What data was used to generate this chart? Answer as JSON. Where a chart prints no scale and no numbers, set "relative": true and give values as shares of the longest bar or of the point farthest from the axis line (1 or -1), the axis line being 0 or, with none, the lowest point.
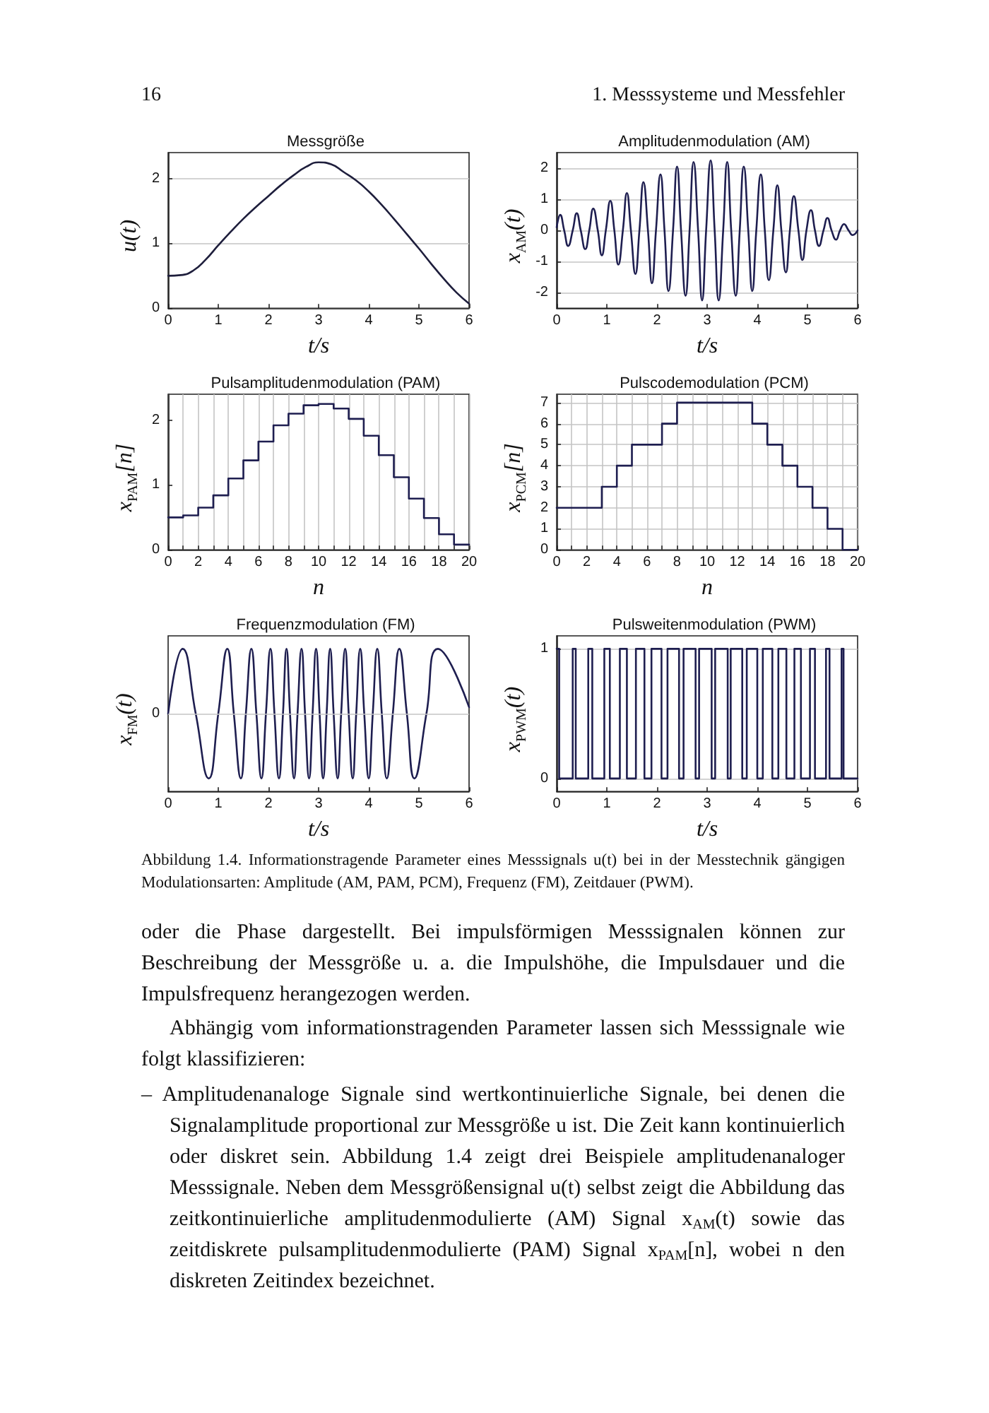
{
  "chart_data": [
    {
      "type": "line",
      "title": "Messgröße",
      "xlabel": "t/s",
      "ylabel": "u(t)",
      "x": [
        0,
        0.25,
        0.5,
        0.75,
        1,
        1.25,
        1.5,
        1.75,
        2,
        2.25,
        2.5,
        2.75,
        3,
        3.25,
        3.5,
        3.75,
        4,
        4.25,
        4.5,
        4.75,
        5,
        5.25,
        5.5,
        5.75,
        6
      ],
      "series": [
        {
          "color": "#1e1e3c",
          "values": [
            0.5,
            0.51,
            0.58,
            0.75,
            0.97,
            1.18,
            1.38,
            1.56,
            1.73,
            1.9,
            2.05,
            2.18,
            2.25,
            2.22,
            2.1,
            1.97,
            1.8,
            1.6,
            1.38,
            1.15,
            0.92,
            0.68,
            0.45,
            0.24,
            0.07
          ]
        }
      ],
      "xlim": [
        0,
        6
      ],
      "xticks": [
        0,
        1,
        2,
        3,
        4,
        5,
        6
      ],
      "ylim": [
        0,
        2.4
      ],
      "yticks": [
        0,
        1,
        2
      ],
      "grid": "y",
      "annotations": [
        "16",
        "1. Messsysteme und Messfehler"
      ]
    },
    {
      "type": "line",
      "title": "Amplitudenmodulation (AM)",
      "xlabel": "t/s",
      "ylabel": "x$_{AM}$(t)",
      "x": [
        0,
        0.07,
        0.15,
        0.23,
        0.32,
        0.4,
        0.48,
        0.57,
        0.65,
        0.73,
        0.82,
        0.9,
        0.98,
        1.07,
        1.15,
        1.23,
        1.32,
        1.4,
        1.48,
        1.57,
        1.65,
        1.73,
        1.82,
        1.9,
        1.98,
        2.07,
        2.15,
        2.23,
        2.32,
        2.4,
        2.48,
        2.57,
        2.65,
        2.73,
        2.82,
        2.9,
        2.98,
        3.07,
        3.15,
        3.23,
        3.32,
        3.4,
        3.48,
        3.57,
        3.65,
        3.73,
        3.82,
        3.9,
        3.98,
        4.07,
        4.15,
        4.23,
        4.32,
        4.4,
        4.48,
        4.57,
        4.65,
        4.73,
        4.82,
        4.9,
        4.98,
        5.07,
        5.15,
        5.23,
        5.32,
        5.4,
        5.48,
        5.57,
        5.65,
        5.73,
        5.82,
        5.9,
        6
      ],
      "series": [
        {
          "color": "#1e1e50",
          "values": [
            0.1,
            0.5,
            0,
            -0.5,
            0,
            0.55,
            0,
            -0.6,
            0,
            0.7,
            0,
            -0.8,
            0,
            0.95,
            0,
            -1.1,
            0,
            1.2,
            0,
            -1.4,
            0,
            1.55,
            0,
            -1.7,
            0,
            1.8,
            0,
            -1.95,
            0,
            2.05,
            0,
            -2.1,
            0,
            2.2,
            0,
            -2.25,
            0,
            2.25,
            0,
            -2.25,
            0,
            2.2,
            0,
            -2.1,
            0,
            2.05,
            0,
            -1.95,
            0,
            1.8,
            0,
            -1.6,
            0,
            1.45,
            0,
            -1.35,
            0,
            1.1,
            0,
            -0.95,
            0,
            0.65,
            0,
            -0.5,
            0,
            0.4,
            0,
            -0.3,
            0,
            0.2,
            0,
            -0.15,
            0
          ]
        }
      ],
      "xlim": [
        0,
        6
      ],
      "xticks": [
        0,
        1,
        2,
        3,
        4,
        5,
        6
      ],
      "ylim": [
        -2.5,
        2.5
      ],
      "yticks": [
        -2,
        -1,
        0,
        1,
        2
      ],
      "grid": "y"
    },
    {
      "type": "step",
      "title": "Pulsamplitudenmodulation (PAM)",
      "xlabel": "n",
      "ylabel": "x$_{PAM}$[n]",
      "x": [
        0,
        1,
        2,
        3,
        4,
        5,
        6,
        7,
        8,
        9,
        10,
        11,
        12,
        13,
        14,
        15,
        16,
        17,
        18,
        19,
        20
      ],
      "series": [
        {
          "color": "#1e1e50",
          "values": [
            0.5,
            0.53,
            0.65,
            0.84,
            1.1,
            1.38,
            1.67,
            1.92,
            2.1,
            2.23,
            2.25,
            2.18,
            2.02,
            1.76,
            1.46,
            1.12,
            0.79,
            0.49,
            0.24,
            0.08,
            0.08
          ]
        }
      ],
      "xlim": [
        0,
        20
      ],
      "xticks": [
        0,
        {
          "value": 1,
          "label": null
        },
        2,
        {
          "value": 3,
          "label": null
        },
        4,
        {
          "value": 5,
          "label": null
        },
        6,
        {
          "value": 7,
          "label": null
        },
        8,
        {
          "value": 9,
          "label": null
        },
        10,
        {
          "value": 11,
          "label": null
        },
        12,
        {
          "value": 13,
          "label": null
        },
        14,
        {
          "value": 15,
          "label": null
        },
        16,
        {
          "value": 17,
          "label": null
        },
        18,
        {
          "value": 19,
          "label": null
        },
        20
      ],
      "ylim": [
        0,
        2.4
      ],
      "yticks": [
        0,
        1,
        2
      ],
      "grid": "x"
    },
    {
      "type": "step",
      "title": "Pulscodemodulation (PCM)",
      "xlabel": "n",
      "ylabel": "x$_{PCM}$[n]",
      "x": [
        0,
        1,
        2,
        3,
        4,
        5,
        6,
        7,
        8,
        9,
        10,
        11,
        12,
        13,
        14,
        15,
        16,
        17,
        18,
        19,
        20
      ],
      "series": [
        {
          "color": "#1e1e50",
          "values": [
            2,
            2,
            2,
            3,
            4,
            5,
            5,
            6,
            7,
            7,
            7,
            7,
            7,
            6,
            5,
            4,
            3,
            2,
            1,
            0,
            0
          ]
        }
      ],
      "xlim": [
        0,
        20
      ],
      "xticks": [
        0,
        {
          "value": 1,
          "label": null
        },
        2,
        {
          "value": 3,
          "label": null
        },
        4,
        {
          "value": 5,
          "label": null
        },
        6,
        {
          "value": 7,
          "label": null
        },
        8,
        {
          "value": 9,
          "label": null
        },
        10,
        {
          "value": 11,
          "label": null
        },
        12,
        {
          "value": 13,
          "label": null
        },
        14,
        {
          "value": 15,
          "label": null
        },
        16,
        {
          "value": 17,
          "label": null
        },
        18,
        {
          "value": 19,
          "label": null
        },
        20
      ],
      "ylim": [
        0,
        7.4
      ],
      "yticks": [
        0,
        1,
        2,
        3,
        4,
        5,
        6,
        7
      ],
      "grid": true
    },
    {
      "type": "line",
      "title": "Frequenzmodulation (FM)",
      "xlabel": "t/s",
      "ylabel": "x$_{FM}$(t)",
      "relative": true,
      "x": [
        0,
        0.29,
        0.55,
        0.81,
        1.0,
        1.18,
        1.31,
        1.45,
        1.55,
        1.66,
        1.76,
        1.86,
        1.95,
        2.04,
        2.12,
        2.21,
        2.29,
        2.36,
        2.43,
        2.51,
        2.58,
        2.66,
        2.73,
        2.81,
        2.88,
        2.95,
        3.02,
        3.09,
        3.16,
        3.23,
        3.3,
        3.38,
        3.45,
        3.53,
        3.6,
        3.68,
        3.75,
        3.83,
        3.91,
        4.0,
        4.08,
        4.17,
        4.26,
        4.36,
        4.48,
        4.61,
        4.76,
        4.91,
        5.15,
        5.38,
        6
      ],
      "series": [
        {
          "color": "#1e1e50",
          "values": [
            0,
            1,
            0,
            -1,
            0,
            1,
            0,
            -1,
            0,
            1,
            0,
            -1,
            0,
            1,
            0,
            -1,
            0,
            1,
            0,
            -1,
            0,
            1,
            0,
            -1,
            0,
            1,
            0,
            -1,
            0,
            1,
            0,
            -1,
            0,
            1,
            0,
            -1,
            0,
            1,
            0,
            -1,
            0,
            1,
            0,
            -1,
            0,
            1,
            0,
            -1,
            0,
            1,
            0.1
          ]
        }
      ],
      "xlim": [
        0,
        6
      ],
      "xticks": [
        0,
        1,
        2,
        3,
        4,
        5,
        6
      ],
      "ref_lines": [
        {
          "axis": "y",
          "value": 0,
          "label": "0"
        }
      ]
    },
    {
      "type": "step",
      "title": "Pulsweitenmodulation (PWM)",
      "xlabel": "t/s",
      "ylabel": "x$_{PWM}$(t)",
      "x": [
        0,
        0.05,
        0.32,
        0.38,
        0.63,
        0.71,
        0.95,
        1.06,
        1.26,
        1.4,
        1.58,
        1.75,
        1.89,
        2.09,
        2.21,
        2.44,
        2.53,
        2.77,
        2.84,
        3.09,
        3.16,
        3.41,
        3.47,
        3.7,
        3.79,
        4.0,
        4.11,
        4.3,
        4.42,
        4.58,
        4.74,
        4.87,
        5.05,
        5.15,
        5.37,
        5.44,
        5.68,
        5.72,
        6
      ],
      "series": [
        {
          "color": "#1e1e50",
          "values": [
            1,
            0,
            1,
            0,
            1,
            0,
            1,
            0,
            1,
            0,
            1,
            0,
            1,
            0,
            1,
            0,
            1,
            0,
            1,
            0,
            1,
            0,
            1,
            0,
            1,
            0,
            1,
            0,
            1,
            0,
            1,
            0,
            1,
            0,
            1,
            0,
            1,
            0,
            0
          ]
        }
      ],
      "xlim": [
        0,
        6
      ],
      "xticks": [
        0,
        1,
        2,
        3,
        4,
        5,
        6
      ],
      "ylim": [
        -0.1,
        1.1
      ],
      "yticks": [
        0,
        1
      ],
      "grid": "y",
      "annotations": [
        "Abbildung 1.4. Informationstragende Parameter eines Messsignals u(t) bei in der Messtechnik gängigen Modulationsarten: Amplitude (AM, PAM, PCM), Frequenz (FM), Zeitdauer (PWM).",
        "oder die Phase dargestellt. Bei impulsförmigen Messsignalen können zur Beschreibung der Messgröße u. a. die Impulshöhe, die Impulsdauer und die Impulsfrequenz herangezogen werden.",
        "Abhängig vom informationstragenden Parameter lassen sich Messsignale wie folgt klassifizieren:",
        "– Amplitudenanaloge Signale sind wertkontinuierliche Signale, bei denen die Signalamplitude proportional zur Messgröße u ist. Die Zeit kann kontinuierlich oder diskret sein. Abbildung 1.4 zeigt drei Beispiele amplitudenanaloger Messsignale. Neben dem Messgrößensignal u(t) selbst zeigt die Abbildung das zeitkontinuierliche amplitudenmodulierte (AM) Signal x$_{AM}$(t) sowie das zeitdiskrete pulsamplitudenmodulierte (PAM) Signal x$_{PAM}$[n], wobei n den diskreten Zeitindex bezeichnet."
      ]
    }
  ]
}
